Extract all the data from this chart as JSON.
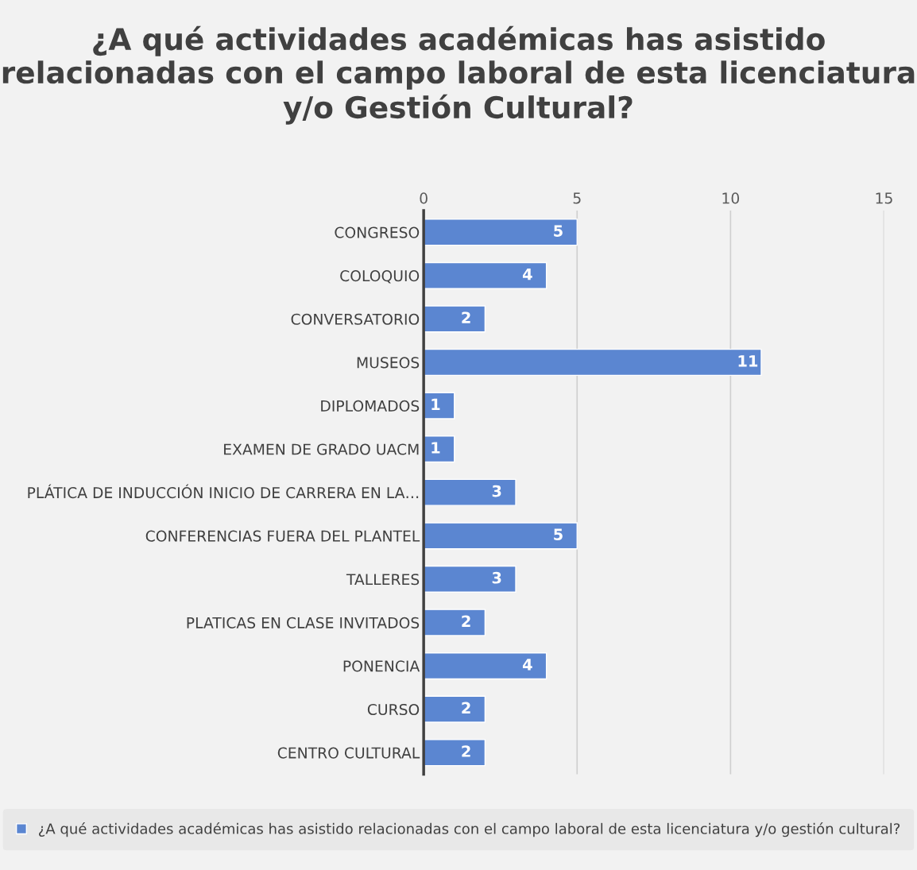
{
  "chart_data": {
    "type": "bar",
    "orientation": "horizontal",
    "title": "¿A qué actividades académicas has asistido relacionadas con el campo laboral de esta licenciatura y/o Gestión Cultural?",
    "categories": [
      "CONGRESO",
      "COLOQUIO",
      "CONVERSATORIO",
      "MUSEOS",
      "DIPLOMADOS",
      "EXAMEN DE GRADO UACM",
      "PLÁTICA DE INDUCCIÓN INICIO DE CARRERA EN LA…",
      "CONFERENCIAS FUERA DEL PLANTEL",
      "TALLERES",
      "PLATICAS EN CLASE INVITADOS",
      "PONENCIA",
      "CURSO",
      "CENTRO CULTURAL"
    ],
    "series": [
      {
        "name": "¿A qué actividades académicas has asistido relacionadas con el campo laboral de esta licenciatura y/o gestión cultural?",
        "color": "#5b86d1",
        "values": [
          5,
          4,
          2,
          11,
          1,
          1,
          3,
          5,
          3,
          2,
          4,
          2,
          2
        ]
      }
    ],
    "xlim": [
      0,
      15
    ],
    "xticks": [
      0,
      5,
      10,
      15
    ],
    "grid": "x",
    "legend": "bottom",
    "data_labels": true
  }
}
